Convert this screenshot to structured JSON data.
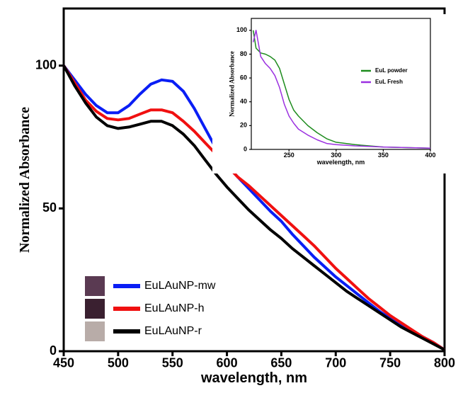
{
  "chart_data": [
    {
      "type": "line",
      "xlabel": "wavelength, nm",
      "ylabel": "Normalized Absorbance",
      "x": [
        450,
        460,
        470,
        480,
        490,
        500,
        510,
        520,
        530,
        540,
        550,
        560,
        570,
        580,
        590,
        600,
        610,
        620,
        630,
        640,
        650,
        660,
        670,
        680,
        690,
        700,
        710,
        720,
        730,
        740,
        750,
        760,
        770,
        780,
        790,
        800
      ],
      "series": [
        {
          "name": "EuLAuNP-mw",
          "color": "#0a1ef5",
          "values": [
            100,
            95,
            90,
            86,
            83.5,
            83.5,
            86,
            90,
            93.5,
            95,
            94.5,
            91,
            85,
            78,
            71,
            65,
            61,
            57,
            53,
            49,
            45.5,
            41,
            37,
            33,
            29.5,
            26,
            23,
            20,
            17,
            14,
            11.5,
            9,
            7,
            5,
            3,
            0.5
          ]
        },
        {
          "name": "EuLAuNP-h",
          "color": "#f01010",
          "values": [
            100,
            94,
            88,
            84,
            81.5,
            81,
            81.5,
            83,
            84.5,
            84.5,
            83.5,
            80.5,
            77,
            73,
            69,
            65,
            61,
            58,
            54.5,
            51,
            47.5,
            44,
            40.5,
            37,
            33,
            29,
            25.5,
            22,
            18.5,
            15.5,
            12.5,
            10,
            7.5,
            5,
            3,
            0.5
          ]
        },
        {
          "name": "EuLAuNP-r",
          "color": "#000000",
          "values": [
            100,
            93,
            87,
            82,
            79,
            78,
            78.5,
            79.5,
            80.5,
            80.5,
            79,
            76,
            72,
            67,
            62,
            57.5,
            53.5,
            49.5,
            46,
            42.5,
            39.5,
            36,
            33,
            30,
            27,
            24,
            21,
            18.5,
            16,
            13.5,
            11,
            8.5,
            6.5,
            4.5,
            2.5,
            0.5
          ]
        }
      ],
      "xlim": [
        450,
        800
      ],
      "xticks": [
        450,
        500,
        550,
        600,
        650,
        700,
        750,
        800
      ],
      "ylim": [
        0,
        120
      ],
      "yticks": [
        0,
        50,
        100
      ],
      "legend": "lower left"
    },
    {
      "type": "line",
      "xlabel": "wavelength, nm",
      "ylabel": "Normalized Absorbance",
      "x": [
        212,
        215,
        220,
        225,
        230,
        235,
        240,
        245,
        250,
        255,
        260,
        270,
        280,
        290,
        300,
        320,
        350,
        400
      ],
      "series": [
        {
          "name": "EuL powder",
          "color": "#1e8c1e",
          "values": [
            100,
            85,
            81,
            80,
            78,
            75,
            68,
            55,
            42,
            33,
            28,
            20,
            14,
            9,
            6,
            4,
            2,
            1
          ]
        },
        {
          "name": "EuL Fresh",
          "color": "#9b30e0",
          "values": [
            90,
            100,
            78,
            72,
            68,
            62,
            52,
            38,
            28,
            22,
            17,
            12,
            8,
            5,
            4,
            3,
            2,
            1
          ]
        }
      ],
      "xlim": [
        210,
        400
      ],
      "xticks": [
        250,
        300,
        350,
        400
      ],
      "ylim": [
        0,
        110
      ],
      "yticks": [
        0,
        20,
        40,
        60,
        80,
        100
      ],
      "legend": "right"
    }
  ]
}
